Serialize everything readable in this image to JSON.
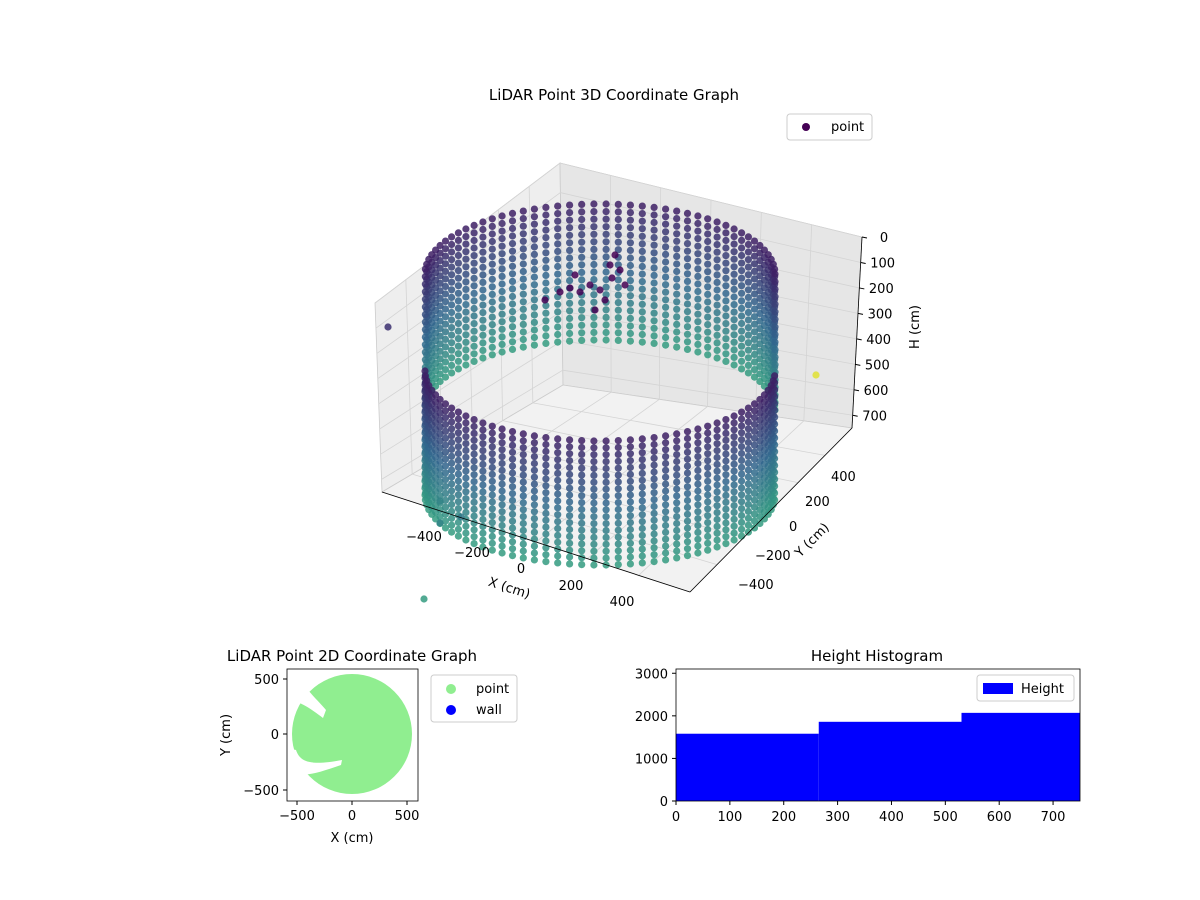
{
  "colors": {
    "viridis_dark": "#440154",
    "viridis_mid": "#31688e",
    "viridis_teal": "#35b779",
    "viridis_yellow": "#fde725",
    "point_2d": "#90ee90",
    "wall_2d": "#0000ff",
    "histogram": "#0000ff"
  },
  "chart_data": [
    {
      "id": "scatter3d",
      "type": "scatter",
      "title": "LiDAR Point 3D Coordinate Graph",
      "xlabel": "X (cm)",
      "ylabel": "Y (cm)",
      "zlabel": "H (cm)",
      "x_ticks": [
        "−400",
        "−200",
        "0",
        "200",
        "400"
      ],
      "y_ticks": [
        "−400",
        "−200",
        "0",
        "200",
        "400"
      ],
      "z_ticks": [
        "0",
        "100",
        "200",
        "300",
        "400",
        "500",
        "600",
        "700"
      ],
      "zlim": [
        0,
        750
      ],
      "z_inverted": true,
      "colormap": "viridis",
      "legend": [
        "point"
      ],
      "legend_position": "top-right",
      "description_points": {
        "shape": "cylindrical wall of points",
        "radius_cm": 480,
        "height_range_cm": [
          0,
          700
        ],
        "columns": 90
      }
    },
    {
      "id": "scatter2d",
      "type": "scatter",
      "title": "LiDAR Point 2D Coordinate Graph",
      "xlabel": "X (cm)",
      "ylabel": "Y (cm)",
      "x_ticks": [
        "−500",
        "0",
        "500"
      ],
      "y_ticks": [
        "−500",
        "0",
        "500"
      ],
      "xlim": [
        -600,
        600
      ],
      "ylim": [
        -600,
        600
      ],
      "legend": [
        "point",
        "wall"
      ],
      "legend_position": "outside-right",
      "series": [
        {
          "name": "point",
          "shape": "disc",
          "radius_cm": 500
        },
        {
          "name": "wall",
          "shape": "none-visible"
        }
      ]
    },
    {
      "id": "histogram",
      "type": "bar",
      "title": "Height Histogram",
      "x_ticks": [
        "0",
        "100",
        "200",
        "300",
        "400",
        "500",
        "600",
        "700"
      ],
      "y_ticks": [
        "0",
        "1000",
        "2000",
        "3000"
      ],
      "xlim": [
        0,
        750
      ],
      "ylim": [
        0,
        3100
      ],
      "legend": [
        "Height"
      ],
      "legend_position": "top-right",
      "bins": [
        {
          "from": 0,
          "to": 265,
          "count": 1580
        },
        {
          "from": 265,
          "to": 530,
          "count": 1860
        },
        {
          "from": 530,
          "to": 750,
          "count": 2070
        }
      ]
    }
  ]
}
